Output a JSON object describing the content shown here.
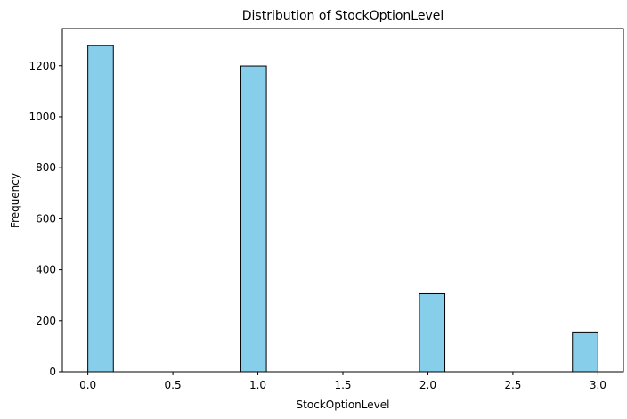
{
  "chart_data": {
    "type": "bar",
    "title": "Distribution of StockOptionLevel",
    "xlabel": "StockOptionLevel",
    "ylabel": "Frequency",
    "xlim": [
      -0.15,
      3.15
    ],
    "ylim": [
      0,
      1346
    ],
    "bin_width": 0.15,
    "bins": [
      {
        "start": 0.0,
        "end": 0.15,
        "value": 1279
      },
      {
        "start": 0.9,
        "end": 1.05,
        "value": 1199
      },
      {
        "start": 1.95,
        "end": 2.1,
        "value": 306
      },
      {
        "start": 2.85,
        "end": 3.0,
        "value": 156
      }
    ],
    "x_ticks": [
      {
        "value": 0.0,
        "label": "0.0"
      },
      {
        "value": 0.5,
        "label": "0.5"
      },
      {
        "value": 1.0,
        "label": "1.0"
      },
      {
        "value": 1.5,
        "label": "1.5"
      },
      {
        "value": 2.0,
        "label": "2.0"
      },
      {
        "value": 2.5,
        "label": "2.5"
      },
      {
        "value": 3.0,
        "label": "3.0"
      }
    ],
    "y_ticks": [
      {
        "value": 0,
        "label": "0"
      },
      {
        "value": 200,
        "label": "200"
      },
      {
        "value": 400,
        "label": "400"
      },
      {
        "value": 600,
        "label": "600"
      },
      {
        "value": 800,
        "label": "800"
      },
      {
        "value": 1000,
        "label": "1000"
      },
      {
        "value": 1200,
        "label": "1200"
      }
    ],
    "grid": false,
    "colors": {
      "bar_fill": "#87CEEB",
      "bar_edge": "#000000",
      "axes": "#000000"
    }
  }
}
